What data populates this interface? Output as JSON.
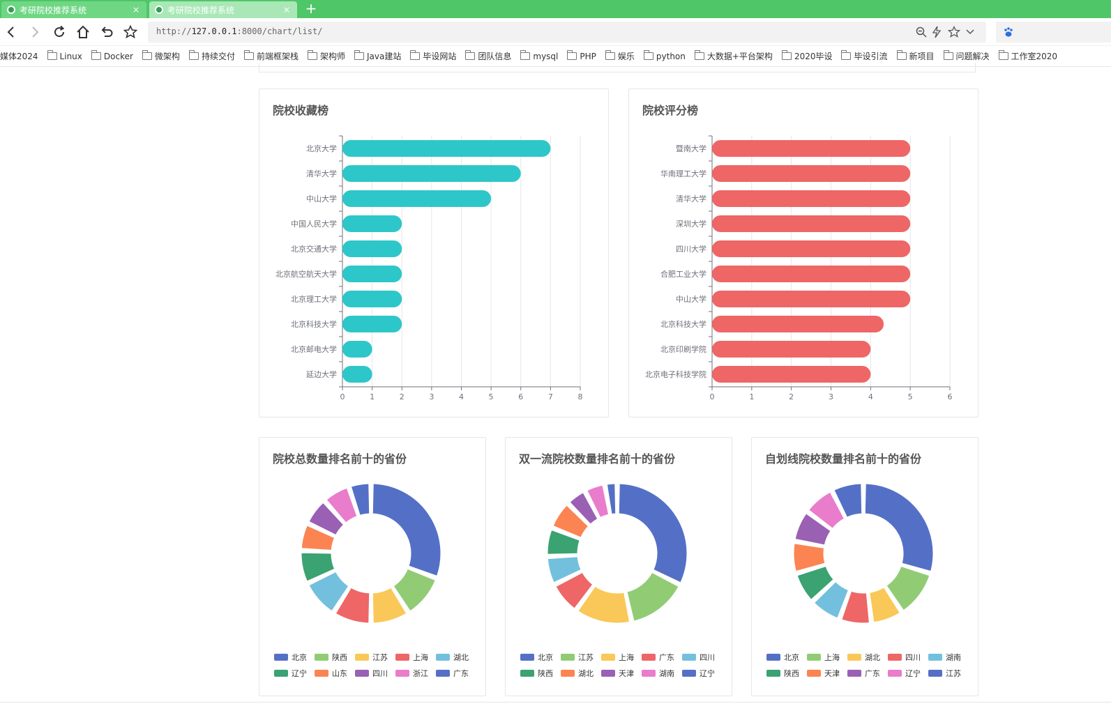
{
  "browser": {
    "tabs": [
      {
        "title": "考研院校推荐系统",
        "close": "×"
      },
      {
        "title": "考研院校推荐系统",
        "close": "×"
      }
    ],
    "new_tab": "+",
    "url_prefix": "http://",
    "url_host": "127.0.0.1",
    "url_rest": ":8000/chart/list/",
    "bookmarks": [
      "媒体2024",
      "Linux",
      "Docker",
      "微架构",
      "持续交付",
      "前端框架栈",
      "架构师",
      "Java建站",
      "毕设网站",
      "团队信息",
      "mysql",
      "PHP",
      "娱乐",
      "python",
      "大数据+平台架构",
      "2020毕设",
      "毕设引流",
      "新项目",
      "问题解决",
      "工作室2020"
    ]
  },
  "cards": {
    "favorites": {
      "title": "院校收藏榜"
    },
    "ratings": {
      "title": "院校评分榜"
    },
    "total": {
      "title": "院校总数量排名前十的省份"
    },
    "double": {
      "title": "双一流院校数量排名前十的省份"
    },
    "self": {
      "title": "自划线院校数量排名前十的省份"
    }
  },
  "chart_data": [
    {
      "id": "favorites",
      "type": "bar",
      "orientation": "horizontal",
      "title": "院校收藏榜",
      "categories": [
        "北京大学",
        "清华大学",
        "中山大学",
        "中国人民大学",
        "北京交通大学",
        "北京航空航天大学",
        "北京理工大学",
        "北京科技大学",
        "北京邮电大学",
        "延边大学"
      ],
      "values": [
        7,
        6,
        5,
        2,
        2,
        2,
        2,
        2,
        1,
        1
      ],
      "xlim": [
        0,
        8
      ],
      "ticks": [
        "0",
        "1",
        "2",
        "3",
        "4",
        "5",
        "6",
        "7",
        "8"
      ],
      "grid": true,
      "color": "#2ec7c9"
    },
    {
      "id": "ratings",
      "type": "bar",
      "orientation": "horizontal",
      "title": "院校评分榜",
      "categories": [
        "暨南大学",
        "华南理工大学",
        "清华大学",
        "深圳大学",
        "四川大学",
        "合肥工业大学",
        "中山大学",
        "北京科技大学",
        "北京印刷学院",
        "北京电子科技学院"
      ],
      "values": [
        5,
        5,
        5,
        5,
        5,
        5,
        5,
        4.33,
        4,
        4
      ],
      "xlim": [
        0,
        6
      ],
      "ticks": [
        "0",
        "1",
        "2",
        "3",
        "4",
        "5",
        "6"
      ],
      "grid": true,
      "color": "#ee6666"
    },
    {
      "id": "total",
      "type": "pie",
      "donut": true,
      "title": "院校总数量排名前十的省份",
      "labels": [
        "北京",
        "陕西",
        "江苏",
        "上海",
        "湖北",
        "辽宁",
        "山东",
        "四川",
        "浙江",
        "广东"
      ],
      "values": [
        24,
        8,
        7,
        7,
        7,
        6,
        5,
        5,
        5,
        4
      ],
      "colors": [
        "#5470c6",
        "#91cc75",
        "#fac858",
        "#ee6666",
        "#73c0de",
        "#3ba272",
        "#fc8452",
        "#9a60b4",
        "#ea7ccc",
        "#5470c6"
      ],
      "legend": "bottom"
    },
    {
      "id": "double",
      "type": "pie",
      "donut": true,
      "title": "双一流院校数量排名前十的省份",
      "labels": [
        "北京",
        "江苏",
        "上海",
        "广东",
        "四川",
        "陕西",
        "湖北",
        "天津",
        "湖南",
        "辽宁"
      ],
      "values": [
        34,
        15,
        14,
        8,
        7,
        7,
        7,
        5,
        5,
        3
      ],
      "colors": [
        "#5470c6",
        "#91cc75",
        "#fac858",
        "#ee6666",
        "#73c0de",
        "#3ba272",
        "#fc8452",
        "#9a60b4",
        "#ea7ccc",
        "#5470c6"
      ],
      "legend": "bottom"
    },
    {
      "id": "self",
      "type": "pie",
      "donut": true,
      "title": "自划线院校数量排名前十的省份",
      "labels": [
        "北京",
        "上海",
        "湖北",
        "四川",
        "湖南",
        "陕西",
        "天津",
        "广东",
        "辽宁",
        "江苏"
      ],
      "values": [
        8,
        3,
        2,
        2,
        2,
        2,
        2,
        2,
        2,
        2
      ],
      "colors": [
        "#5470c6",
        "#91cc75",
        "#fac858",
        "#ee6666",
        "#73c0de",
        "#3ba272",
        "#fc8452",
        "#9a60b4",
        "#ea7ccc",
        "#5470c6"
      ],
      "legend": "bottom"
    }
  ]
}
